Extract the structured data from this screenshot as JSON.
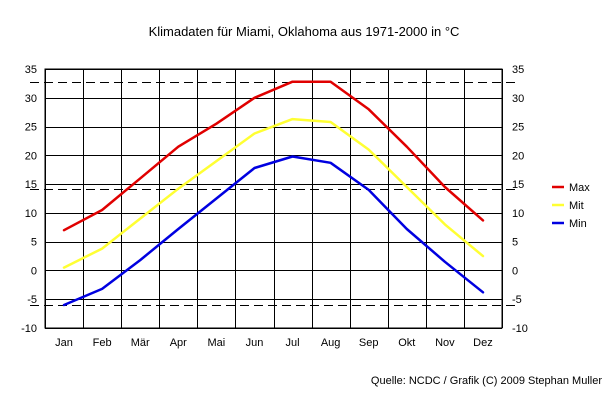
{
  "chart_data": {
    "type": "line",
    "title": "Klimadaten für Miami, Oklahoma aus 1971-2000 in °C",
    "categories": [
      "Jan",
      "Feb",
      "Mär",
      "Apr",
      "Mai",
      "Jun",
      "Jul",
      "Aug",
      "Sep",
      "Okt",
      "Nov",
      "Dez"
    ],
    "ylim": [
      -10,
      35
    ],
    "yticks": [
      -10,
      -5,
      0,
      5,
      10,
      15,
      20,
      25,
      30,
      35
    ],
    "grid": true,
    "legend_position": "right",
    "series": [
      {
        "name": "Max",
        "color": "#e00000",
        "values": [
          7.0,
          10.5,
          16.0,
          21.5,
          25.5,
          30.0,
          32.8,
          32.8,
          28.0,
          21.5,
          14.5,
          8.7
        ]
      },
      {
        "name": "Mit",
        "color": "#ffff33",
        "values": [
          0.5,
          3.8,
          9.0,
          14.2,
          19.0,
          23.8,
          26.3,
          25.8,
          21.0,
          14.5,
          8.0,
          2.5
        ]
      },
      {
        "name": "Min",
        "color": "#0000e0",
        "values": [
          -6.0,
          -3.2,
          1.8,
          7.2,
          12.5,
          17.8,
          19.8,
          18.7,
          14.0,
          7.2,
          1.5,
          -3.8
        ]
      }
    ],
    "reference_lines": [
      {
        "value": 32.7,
        "style": "dashed"
      },
      {
        "value": 14.1,
        "style": "dashed"
      },
      {
        "value": -6.0,
        "style": "dashed"
      }
    ],
    "source": "Quelle: NCDC / Grafik (C) 2009 Stephan Muller"
  }
}
